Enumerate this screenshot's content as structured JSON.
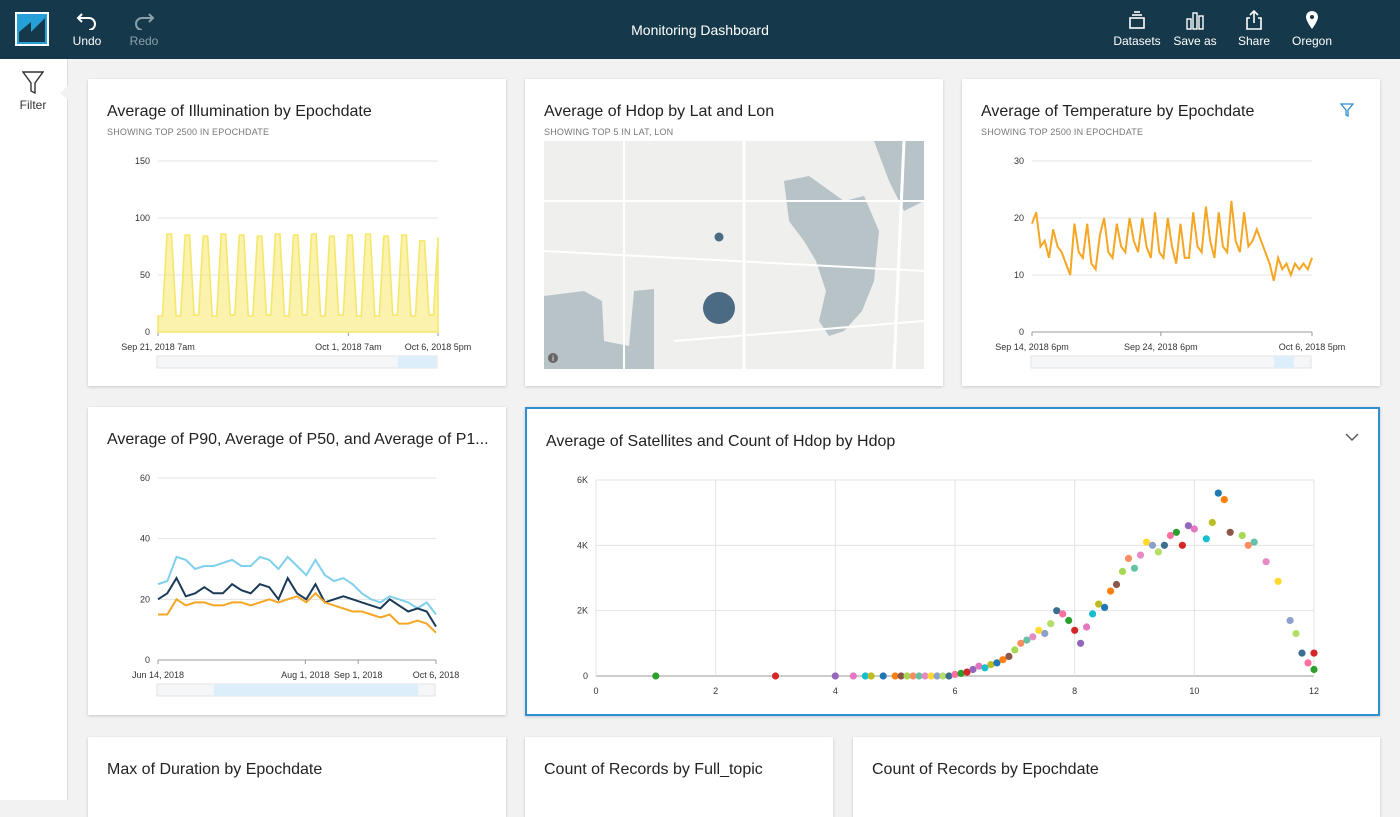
{
  "toolbar": {
    "undo_label": "Undo",
    "redo_label": "Redo",
    "title": "Monitoring Dashboard",
    "datasets_label": "Datasets",
    "saveas_label": "Save as",
    "share_label": "Share",
    "region_label": "Oregon"
  },
  "sidebar": {
    "filter_label": "Filter"
  },
  "colors": {
    "topbar": "#15394a",
    "accent": "#2f8fd0",
    "yellow": "#f5e76a",
    "orange": "#f5a623",
    "navy": "#1b3a57",
    "lightblue": "#7fd0ec"
  },
  "cards": {
    "illumination": {
      "title": "Average of Illumination by Epochdate",
      "subtitle": "SHOWING TOP 2500 IN EPOCHDATE"
    },
    "hdop_map": {
      "title": "Average of Hdop by Lat and Lon",
      "subtitle": "SHOWING TOP 5 IN LAT, LON"
    },
    "temperature": {
      "title": "Average of Temperature by Epochdate",
      "subtitle": "SHOWING TOP 2500 IN EPOCHDATE"
    },
    "percentiles": {
      "title": "Average of P90, Average of P50, and Average of P1..."
    },
    "satellites": {
      "title": "Average of Satellites and Count of Hdop by Hdop"
    },
    "duration": {
      "title": "Max of Duration by Epochdate"
    },
    "full_topic": {
      "title": "Count of Records by Full_topic"
    },
    "records_epoch": {
      "title": "Count of Records by Epochdate"
    }
  },
  "chart_data": [
    {
      "type": "area",
      "title": "Average of Illumination by Epochdate",
      "ylim": [
        0,
        150
      ],
      "y_ticks": [
        "0",
        "50",
        "100",
        "150"
      ],
      "x_ticks": [
        "Sep 21, 2018 7am",
        "Oct 1, 2018 7am",
        "Oct 6, 2018 5pm"
      ],
      "series": [
        {
          "values": [
            14,
            14,
            86,
            86,
            14,
            14,
            85,
            85,
            15,
            15,
            84,
            84,
            14,
            14,
            86,
            86,
            15,
            15,
            85,
            85,
            14,
            14,
            84,
            84,
            15,
            15,
            86,
            86,
            14,
            14,
            85,
            85,
            15,
            15,
            86,
            86,
            14,
            14,
            84,
            84,
            15,
            15,
            85,
            85,
            14,
            14,
            86,
            86,
            14,
            14,
            84,
            84,
            15,
            15,
            85,
            85,
            14,
            14,
            80,
            80,
            15,
            15,
            83
          ]
        }
      ],
      "color": "#f5e76a"
    },
    {
      "type": "line",
      "title": "Average of Temperature by Epochdate",
      "ylim": [
        0,
        30
      ],
      "y_ticks": [
        "0",
        "10",
        "20",
        "30"
      ],
      "x_ticks": [
        "Sep 14, 2018 6pm",
        "Sep 24, 2018 6pm",
        "Oct 6, 2018 5pm"
      ],
      "series": [
        {
          "values": [
            19,
            21,
            15,
            16,
            13,
            18,
            15,
            14,
            12,
            10,
            19,
            14,
            13,
            19,
            12,
            11,
            17,
            20,
            14,
            13,
            19,
            15,
            14,
            20,
            16,
            14,
            20,
            15,
            13,
            21,
            14,
            13,
            20,
            15,
            12,
            19,
            13,
            13,
            21,
            15,
            14,
            22,
            16,
            13,
            21,
            15,
            14,
            23,
            16,
            14,
            21,
            15,
            16,
            18,
            16,
            14,
            12,
            9,
            13,
            11,
            12,
            10,
            12,
            11,
            12,
            11,
            13
          ]
        }
      ],
      "color": "#f5a623"
    },
    {
      "type": "line",
      "title": "Average of P90, Average of P50, and Average of P1...",
      "ylim": [
        0,
        60
      ],
      "y_ticks": [
        "0",
        "20",
        "40",
        "60"
      ],
      "x_ticks": [
        "Jun 14, 2018",
        "Aug 1, 2018",
        "Sep 1, 2018",
        "Oct 6, 2018"
      ],
      "series": [
        {
          "values": [
            25,
            26,
            34,
            33,
            30,
            31,
            31,
            32,
            33,
            31,
            31,
            34,
            33,
            30,
            34,
            31,
            28,
            33,
            28,
            26,
            27,
            25,
            22,
            20,
            19,
            21,
            20,
            19,
            17,
            19,
            15
          ],
          "color": "#7fd0ec"
        },
        {
          "values": [
            20,
            22,
            27,
            21,
            22,
            24,
            22,
            22,
            25,
            23,
            22,
            25,
            24,
            20,
            27,
            22,
            20,
            25,
            19,
            20,
            21,
            20,
            19,
            18,
            17,
            20,
            18,
            16,
            17,
            16,
            11
          ],
          "color": "#1b3a57"
        },
        {
          "values": [
            15,
            15,
            20,
            18,
            19,
            19,
            18,
            18,
            19,
            19,
            18,
            19,
            20,
            19,
            20,
            21,
            19,
            22,
            19,
            18,
            17,
            16,
            16,
            15,
            14,
            15,
            12,
            12,
            13,
            12,
            9
          ],
          "color": "#f5a623"
        }
      ]
    },
    {
      "type": "scatter",
      "title": "Average of Satellites and Count of Hdop by Hdop",
      "xlim": [
        0,
        12
      ],
      "ylim": [
        0,
        6000
      ],
      "x_ticks": [
        "0",
        "2",
        "4",
        "6",
        "8",
        "10",
        "12"
      ],
      "y_ticks": [
        "0",
        "2K",
        "4K",
        "6K"
      ],
      "points": [
        [
          1.0,
          0
        ],
        [
          3.0,
          0
        ],
        [
          4.0,
          0
        ],
        [
          4.3,
          0
        ],
        [
          4.5,
          0
        ],
        [
          4.6,
          0
        ],
        [
          4.8,
          0
        ],
        [
          5.0,
          0
        ],
        [
          5.1,
          0
        ],
        [
          5.2,
          0
        ],
        [
          5.3,
          0
        ],
        [
          5.4,
          0
        ],
        [
          5.5,
          0
        ],
        [
          5.6,
          0
        ],
        [
          5.7,
          0
        ],
        [
          5.8,
          0
        ],
        [
          5.9,
          0
        ],
        [
          6.0,
          50
        ],
        [
          6.1,
          80
        ],
        [
          6.2,
          120
        ],
        [
          6.3,
          200
        ],
        [
          6.4,
          300
        ],
        [
          6.5,
          250
        ],
        [
          6.6,
          350
        ],
        [
          6.7,
          400
        ],
        [
          6.8,
          500
        ],
        [
          6.9,
          600
        ],
        [
          7.0,
          800
        ],
        [
          7.1,
          1000
        ],
        [
          7.2,
          1100
        ],
        [
          7.3,
          1200
        ],
        [
          7.4,
          1400
        ],
        [
          7.5,
          1300
        ],
        [
          7.6,
          1600
        ],
        [
          7.7,
          2000
        ],
        [
          7.8,
          1900
        ],
        [
          7.9,
          1700
        ],
        [
          8.0,
          1400
        ],
        [
          8.1,
          1000
        ],
        [
          8.2,
          1500
        ],
        [
          8.3,
          1900
        ],
        [
          8.4,
          2200
        ],
        [
          8.5,
          2100
        ],
        [
          8.6,
          2600
        ],
        [
          8.7,
          2800
        ],
        [
          8.8,
          3200
        ],
        [
          8.9,
          3600
        ],
        [
          9.0,
          3300
        ],
        [
          9.1,
          3700
        ],
        [
          9.2,
          4100
        ],
        [
          9.3,
          4000
        ],
        [
          9.4,
          3800
        ],
        [
          9.5,
          4000
        ],
        [
          9.6,
          4300
        ],
        [
          9.7,
          4400
        ],
        [
          9.8,
          4000
        ],
        [
          9.9,
          4600
        ],
        [
          10.0,
          4500
        ],
        [
          10.2,
          4200
        ],
        [
          10.3,
          4700
        ],
        [
          10.4,
          5600
        ],
        [
          10.5,
          5400
        ],
        [
          10.6,
          4400
        ],
        [
          10.8,
          4300
        ],
        [
          10.9,
          4000
        ],
        [
          11.0,
          4100
        ],
        [
          11.2,
          3500
        ],
        [
          11.4,
          2900
        ],
        [
          11.6,
          1700
        ],
        [
          11.7,
          1300
        ],
        [
          11.8,
          700
        ],
        [
          11.9,
          400
        ],
        [
          12.0,
          200
        ],
        [
          12.0,
          700
        ]
      ]
    }
  ]
}
